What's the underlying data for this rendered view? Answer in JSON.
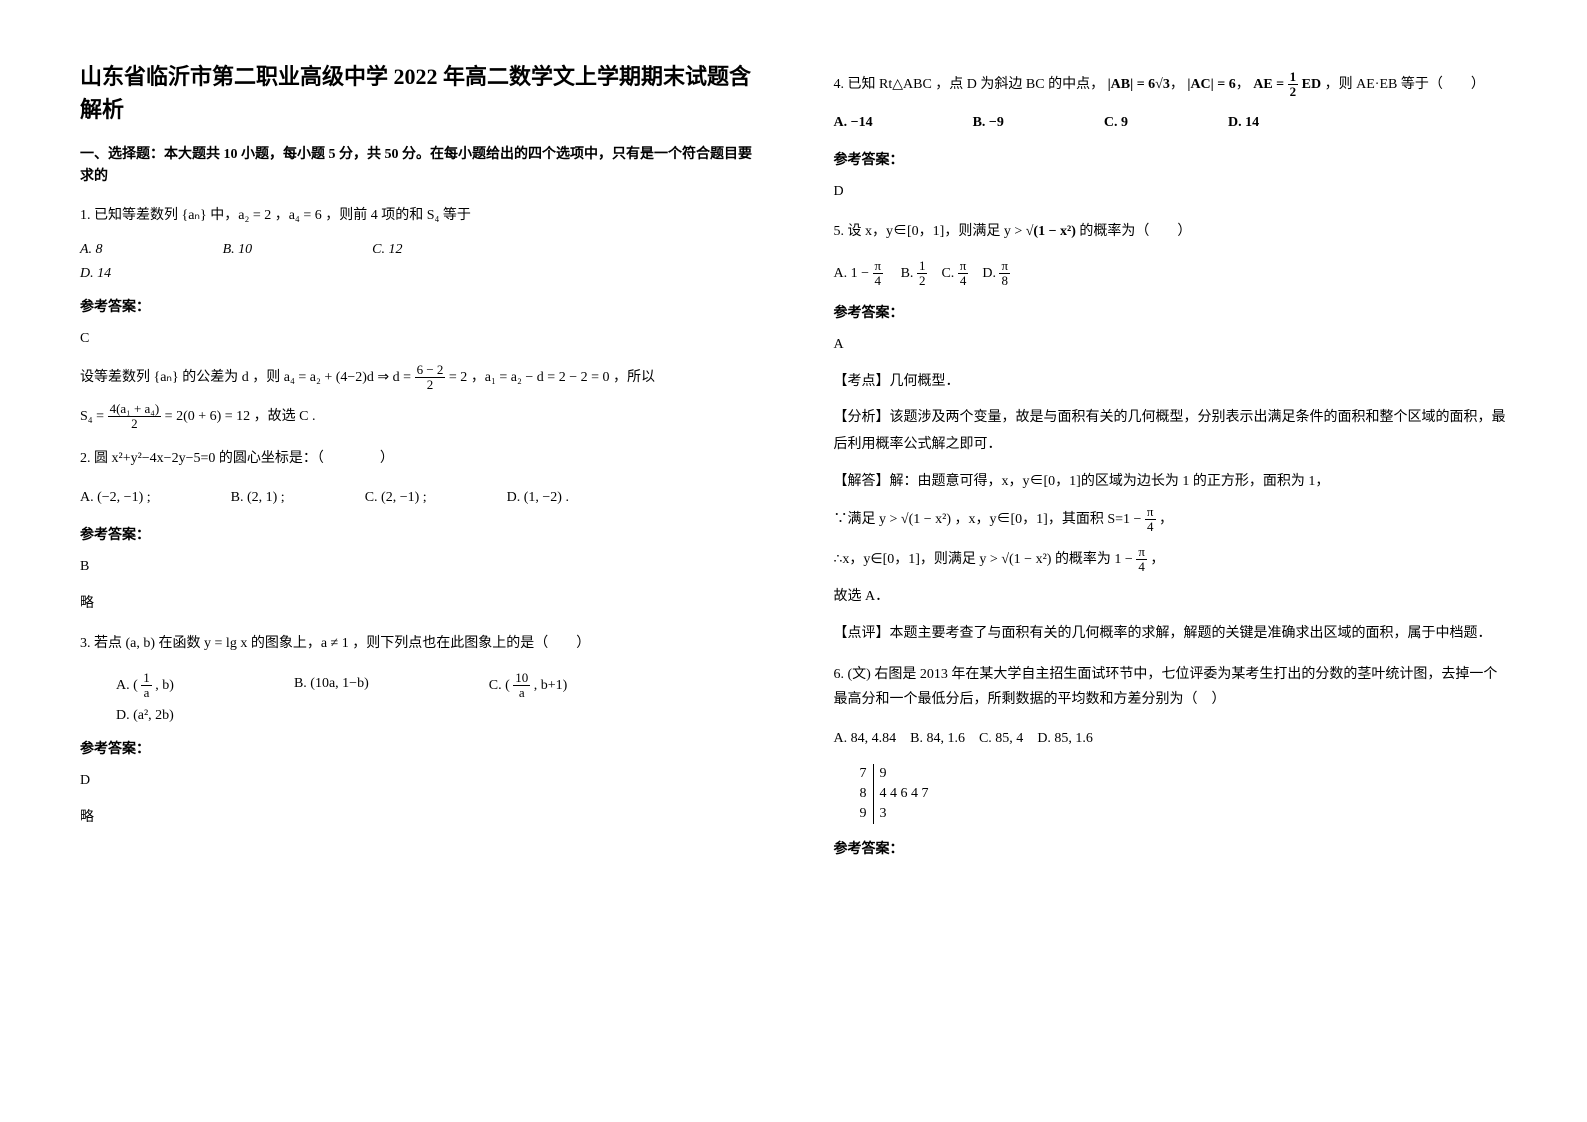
{
  "title": "山东省临沂市第二职业高级中学 2022 年高二数学文上学期期末试题含解析",
  "section1": "一、选择题：本大题共 10 小题，每小题 5 分，共 50 分。在每小题给出的四个选项中，只有是一个符合题目要求的",
  "q1": {
    "stem": "1. 已知等差数列 {aₙ} 中，a₂ = 2 ，a₄ = 6 ，则前 4 项的和 S₄ 等于",
    "optA": "A.  8",
    "optB": "B.  10",
    "optC": "C.  12",
    "optD": "D.  14",
    "ansHead": "参考答案：",
    "ans": "C",
    "expl1_pre": "设等差数列 {aₙ} 的公差为 d ，则 ",
    "expl1_math": "a₄ = a₂ + (4−2)d ⇒ d = ",
    "expl1_frac_num": "6 − 2",
    "expl1_frac_den": "2",
    "expl1_eq": " = 2",
    "expl1_mid": "，a₁ = a₂ − d = 2 − 2 = 0 ，所以",
    "expl2_pre": "S₄ = ",
    "expl2_frac_num": "4(a₁ + a₄)",
    "expl2_frac_den": "2",
    "expl2_post": " = 2(0 + 6) = 12 ，故选 C ."
  },
  "q2": {
    "stem": "2. 圆 x²+y²−4x−2y−5=0 的圆心坐标是：（　　　　）",
    "optA": "A. (−2, −1) ;",
    "optB": "B. (2, 1) ;",
    "optC": "C. (2, −1) ;",
    "optD": "D. (1, −2) .",
    "ansHead": "参考答案：",
    "ans": "B",
    "note": "略"
  },
  "q3": {
    "stem": "3. 若点 (a, b) 在函数 y = lg x 的图象上，a ≠ 1 ，则下列点也在此图象上的是（　　）",
    "optA_pre": "A. ",
    "optA_math1": "(",
    "optA_frac_num": "1",
    "optA_frac_den": "a",
    "optA_math2": ", b)",
    "optB": "B.  (10a, 1−b)",
    "optC_pre": "C. ",
    "optC_math1": "(",
    "optC_frac_num": "10",
    "optC_frac_den": "a",
    "optC_math2": ", b+1)",
    "optD": "D.  (a², 2b)",
    "ansHead": "参考答案：",
    "ans": "D",
    "note": "略"
  },
  "q4": {
    "stem_pre": "4. 已知 Rt△ABC ，点 D 为斜边 BC 的中点，",
    "ab": "|AB| = 6√3",
    "ac": "|AC| = 6",
    "ae_pre": "AE = ",
    "ae_num": "1",
    "ae_den": "2",
    "ae_post": "ED",
    "stem_post": "，则 AE·EB 等于（　　）",
    "optA": "A.  −14",
    "optB": "B.  −9",
    "optC": "C.  9",
    "optD": "D.  14",
    "ansHead": "参考答案：",
    "ans": "D"
  },
  "q5": {
    "stem_pre": "5. 设 x，y∈[0，1]，则满足 y > ",
    "stem_sqrt": "√(1 − x²)",
    "stem_post": " 的概率为（　　）",
    "optA_pre": "A.  1 − ",
    "optA_num": "π",
    "optA_den": "4",
    "optB_pre": "B.  ",
    "optB_num": "1",
    "optB_den": "2",
    "optC_pre": "C.  ",
    "optC_num": "π",
    "optC_den": "4",
    "optD_pre": "D.  ",
    "optD_num": "π",
    "optD_den": "8",
    "ansHead": "参考答案：",
    "ans": "A",
    "tag1": "【考点】几何概型．",
    "tag2": "【分析】该题涉及两个变量，故是与面积有关的几何概型，分别表示出满足条件的面积和整个区域的面积，最后利用概率公式解之即可．",
    "tag3": "【解答】解：由题意可得，x，y∈[0，1]的区域为边长为 1 的正方形，面积为 1，",
    "line1_pre": "∵满足 y > ",
    "line1_sqrt": "√(1 − x²)",
    "line1_mid": "，x，y∈[0，1]，其面积 S=1 − ",
    "line1_num": "π",
    "line1_den": "4",
    "line1_post": "，",
    "line2_pre": "∴x，y∈[0，1]，则满足 y > ",
    "line2_sqrt": "√(1 − x²)",
    "line2_mid": "的概率为 1 − ",
    "line2_num": "π",
    "line2_den": "4",
    "line2_post": "，",
    "line3": "故选 A．",
    "tag4": "【点评】本题主要考查了与面积有关的几何概率的求解，解题的关键是准确求出区域的面积，属于中档题．"
  },
  "q6": {
    "stem": "6. (文) 右图是 2013 年在某大学自主招生面试环节中，七位评委为某考生打出的分数的茎叶统计图，去掉一个最高分和一个最低分后，所剩数据的平均数和方差分别为（　）",
    "optA": "A. 84, 4.84",
    "optB": "B. 84, 1.6",
    "optC": "C. 85, 4",
    "optD": "D. 85, 1.6",
    "stemleaf": {
      "rows": [
        {
          "stem": "7",
          "leaf": "9"
        },
        {
          "stem": "8",
          "leaf": "4  4  6  4  7"
        },
        {
          "stem": "9",
          "leaf": "3"
        }
      ]
    },
    "ansHead": "参考答案："
  }
}
